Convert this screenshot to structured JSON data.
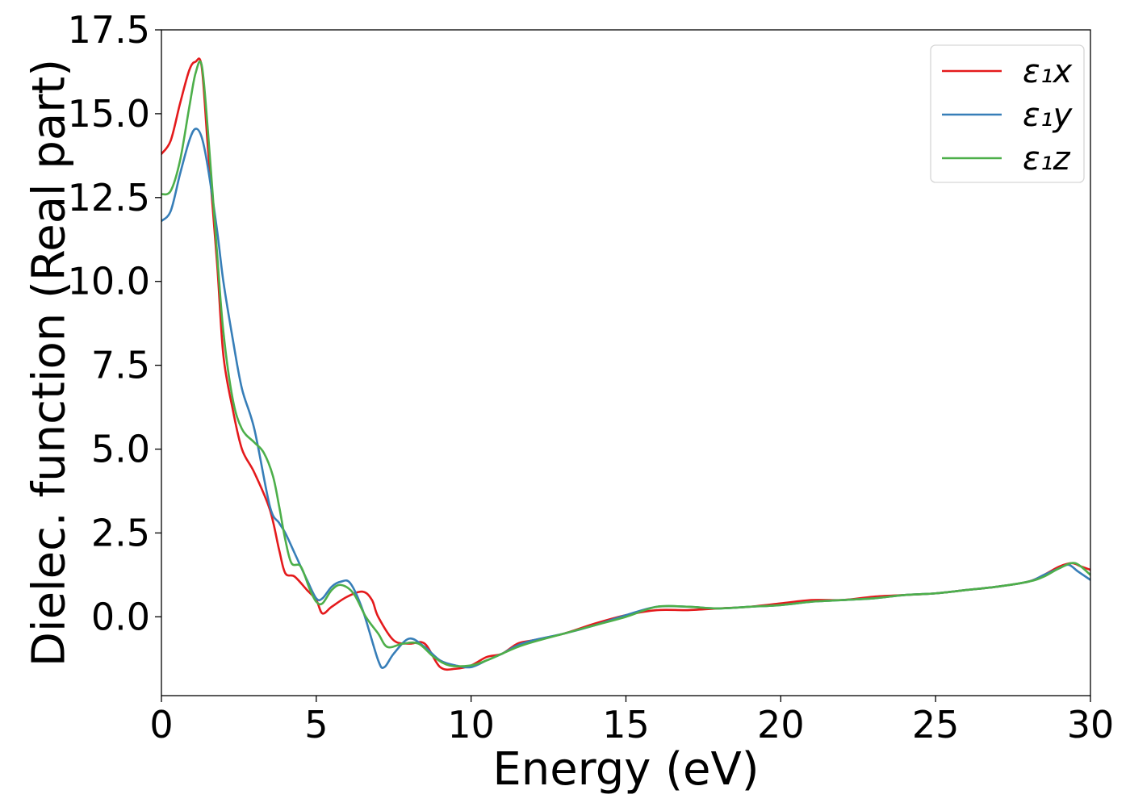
{
  "chart_data": {
    "type": "line",
    "xlabel": "Energy (eV)",
    "ylabel": "Dielec. function (Real part)",
    "xlim": [
      0,
      30
    ],
    "ylim": [
      -2.35,
      17.5
    ],
    "xticks": [
      0,
      5,
      10,
      15,
      20,
      25,
      30
    ],
    "xtick_labels": [
      "0",
      "5",
      "10",
      "15",
      "20",
      "25",
      "30"
    ],
    "yticks": [
      0,
      2.5,
      5,
      7.5,
      10,
      12.5,
      15,
      17.5
    ],
    "ytick_labels": [
      "0.0",
      "2.5",
      "5.0",
      "7.5",
      "10.0",
      "12.5",
      "15.0",
      "17.5"
    ],
    "grid": false,
    "legend_position": "top-right",
    "series": [
      {
        "name": "ε₁x",
        "color": "#e41a1c",
        "x": [
          0,
          0.3,
          0.6,
          0.9,
          1.1,
          1.3,
          1.5,
          1.8,
          2.0,
          2.3,
          2.6,
          3.0,
          3.5,
          3.8,
          4.0,
          4.3,
          4.7,
          5.0,
          5.2,
          5.5,
          6.0,
          6.5,
          6.8,
          7.0,
          7.5,
          8.0,
          8.5,
          9.0,
          9.5,
          10.0,
          10.5,
          11.0,
          11.5,
          12.0,
          13.0,
          14.0,
          15.0,
          16.0,
          17.0,
          18.0,
          19.0,
          20.0,
          21.0,
          22.0,
          23.0,
          24.0,
          25.0,
          26.0,
          27.0,
          28.0,
          28.5,
          29.0,
          29.4,
          29.7,
          30.0
        ],
        "y": [
          13.8,
          14.2,
          15.3,
          16.3,
          16.55,
          16.4,
          14.0,
          10.5,
          7.8,
          6.2,
          5.0,
          4.3,
          3.2,
          2.0,
          1.3,
          1.2,
          0.8,
          0.5,
          0.1,
          0.3,
          0.6,
          0.75,
          0.5,
          0.0,
          -0.7,
          -0.8,
          -0.8,
          -1.5,
          -1.55,
          -1.45,
          -1.2,
          -1.1,
          -0.8,
          -0.7,
          -0.5,
          -0.2,
          0.05,
          0.2,
          0.2,
          0.25,
          0.3,
          0.4,
          0.5,
          0.5,
          0.6,
          0.65,
          0.7,
          0.8,
          0.9,
          1.05,
          1.25,
          1.5,
          1.6,
          1.5,
          1.4
        ]
      },
      {
        "name": "ε₁y",
        "color": "#377eb8",
        "x": [
          0,
          0.3,
          0.6,
          0.9,
          1.1,
          1.3,
          1.5,
          1.8,
          2.0,
          2.3,
          2.6,
          3.0,
          3.5,
          3.8,
          4.0,
          4.3,
          4.7,
          5.0,
          5.2,
          5.5,
          5.8,
          6.1,
          6.5,
          7.0,
          7.2,
          7.5,
          8.0,
          8.5,
          9.0,
          9.5,
          10.0,
          10.5,
          11.0,
          11.5,
          12.0,
          13.0,
          14.0,
          15.0,
          16.0,
          17.0,
          18.0,
          19.0,
          20.0,
          21.0,
          22.0,
          23.0,
          24.0,
          25.0,
          26.0,
          27.0,
          28.0,
          28.5,
          29.0,
          29.3,
          29.6,
          30.0
        ],
        "y": [
          11.8,
          12.1,
          13.2,
          14.2,
          14.55,
          14.3,
          13.4,
          11.5,
          10.0,
          8.3,
          6.8,
          5.6,
          3.3,
          2.8,
          2.5,
          1.9,
          1.1,
          0.55,
          0.55,
          0.9,
          1.05,
          1.0,
          0.2,
          -1.3,
          -1.5,
          -1.1,
          -0.65,
          -0.9,
          -1.3,
          -1.45,
          -1.5,
          -1.3,
          -1.1,
          -0.85,
          -0.7,
          -0.5,
          -0.25,
          0.05,
          0.3,
          0.3,
          0.25,
          0.3,
          0.35,
          0.45,
          0.5,
          0.55,
          0.65,
          0.7,
          0.8,
          0.9,
          1.05,
          1.25,
          1.45,
          1.55,
          1.35,
          1.1
        ]
      },
      {
        "name": "ε₁z",
        "color": "#4daf4a",
        "x": [
          0,
          0.3,
          0.6,
          0.9,
          1.1,
          1.3,
          1.5,
          1.8,
          2.0,
          2.3,
          2.6,
          3.0,
          3.3,
          3.6,
          3.8,
          4.0,
          4.2,
          4.5,
          4.8,
          5.0,
          5.2,
          5.5,
          5.8,
          6.2,
          6.6,
          7.0,
          7.3,
          7.8,
          8.3,
          8.8,
          9.3,
          10.0,
          10.5,
          11.0,
          11.5,
          12.0,
          13.0,
          14.0,
          15.0,
          16.0,
          17.0,
          18.0,
          19.0,
          20.0,
          21.0,
          22.0,
          23.0,
          24.0,
          25.0,
          26.0,
          27.0,
          28.0,
          28.5,
          29.0,
          29.5,
          30.0
        ],
        "y": [
          12.6,
          12.7,
          13.6,
          15.2,
          16.2,
          16.45,
          14.5,
          10.8,
          8.5,
          6.5,
          5.6,
          5.2,
          4.9,
          4.2,
          3.3,
          2.3,
          1.6,
          1.5,
          0.8,
          0.45,
          0.4,
          0.8,
          0.95,
          0.7,
          0.0,
          -0.5,
          -0.9,
          -0.8,
          -0.8,
          -1.2,
          -1.45,
          -1.45,
          -1.3,
          -1.1,
          -0.9,
          -0.75,
          -0.5,
          -0.25,
          0.0,
          0.3,
          0.3,
          0.25,
          0.3,
          0.35,
          0.45,
          0.5,
          0.55,
          0.65,
          0.7,
          0.8,
          0.9,
          1.05,
          1.2,
          1.45,
          1.6,
          1.25
        ]
      }
    ]
  }
}
